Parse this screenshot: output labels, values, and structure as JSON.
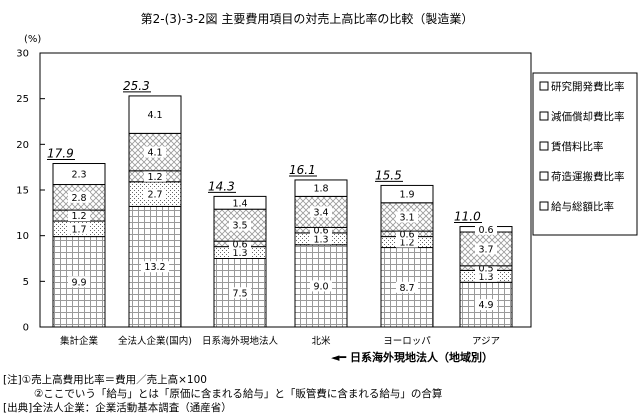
{
  "chart_data": {
    "type": "bar",
    "stacked": true,
    "title": "第2-(3)-3-2図 主要費用項目の対売上高比率の比較（製造業）",
    "ylabel": "(%)",
    "ylim": [
      0,
      30
    ],
    "yticks": [
      0,
      5,
      10,
      15,
      20,
      25,
      30
    ],
    "grid": false,
    "legend_position": "right",
    "categories": [
      "集計企業",
      "全法人企業(国内)",
      "日系海外現地法人",
      "北米",
      "ヨーロッパ",
      "アジア"
    ],
    "x_group_label": "◄━ 日系海外現地法人（地域別）",
    "totals": [
      {
        "value": 17.9,
        "label": "17.9"
      },
      {
        "value": 25.3,
        "label": "25.3"
      },
      {
        "value": 14.3,
        "label": "14.3"
      },
      {
        "value": 16.1,
        "label": "16.1"
      },
      {
        "value": 15.5,
        "label": "15.5"
      },
      {
        "value": 11.0,
        "label": "11.0"
      }
    ],
    "series": [
      {
        "name": "給与総額比率",
        "pattern": "grid",
        "values": [
          9.9,
          13.2,
          7.5,
          9.0,
          8.7,
          4.9
        ],
        "labels": [
          "9.9",
          "13.2",
          "7.5",
          "9.0",
          "8.7",
          "4.9"
        ]
      },
      {
        "name": "荷造運搬費比率",
        "pattern": "dots",
        "values": [
          1.7,
          2.7,
          1.3,
          1.3,
          1.2,
          1.3
        ],
        "labels": [
          "1.7",
          "2.7",
          "1.3",
          "1.3",
          "1.2",
          "1.3"
        ]
      },
      {
        "name": "賃借料比率",
        "pattern": "cross",
        "values": [
          1.2,
          1.2,
          0.6,
          0.6,
          0.6,
          0.5
        ],
        "labels": [
          "1.2",
          "1.2",
          "0.6",
          "0.6",
          "0.6",
          "0.5"
        ]
      },
      {
        "name": "減価償却費比率",
        "pattern": "cross",
        "values": [
          2.8,
          4.1,
          3.5,
          3.4,
          3.1,
          3.7
        ],
        "labels": [
          "2.8",
          "4.1",
          "3.5",
          "3.4",
          "3.1",
          "3.7"
        ]
      },
      {
        "name": "研究開発費比率",
        "pattern": "none",
        "values": [
          2.3,
          4.1,
          1.4,
          1.8,
          1.9,
          0.6
        ],
        "labels": [
          "2.3",
          "4.1",
          "1.4",
          "1.8",
          "1.9",
          "0.6"
        ]
      }
    ]
  },
  "notes": {
    "line1": "[注]①売上高費用比率＝費用／売上高×100",
    "line2": "②ここでいう「給与」とは「原価に含まれる給与」と「販管費に含まれる給与」の合算",
    "source": "[出典]全法人企業：企業活動基本調査（通産省）"
  }
}
